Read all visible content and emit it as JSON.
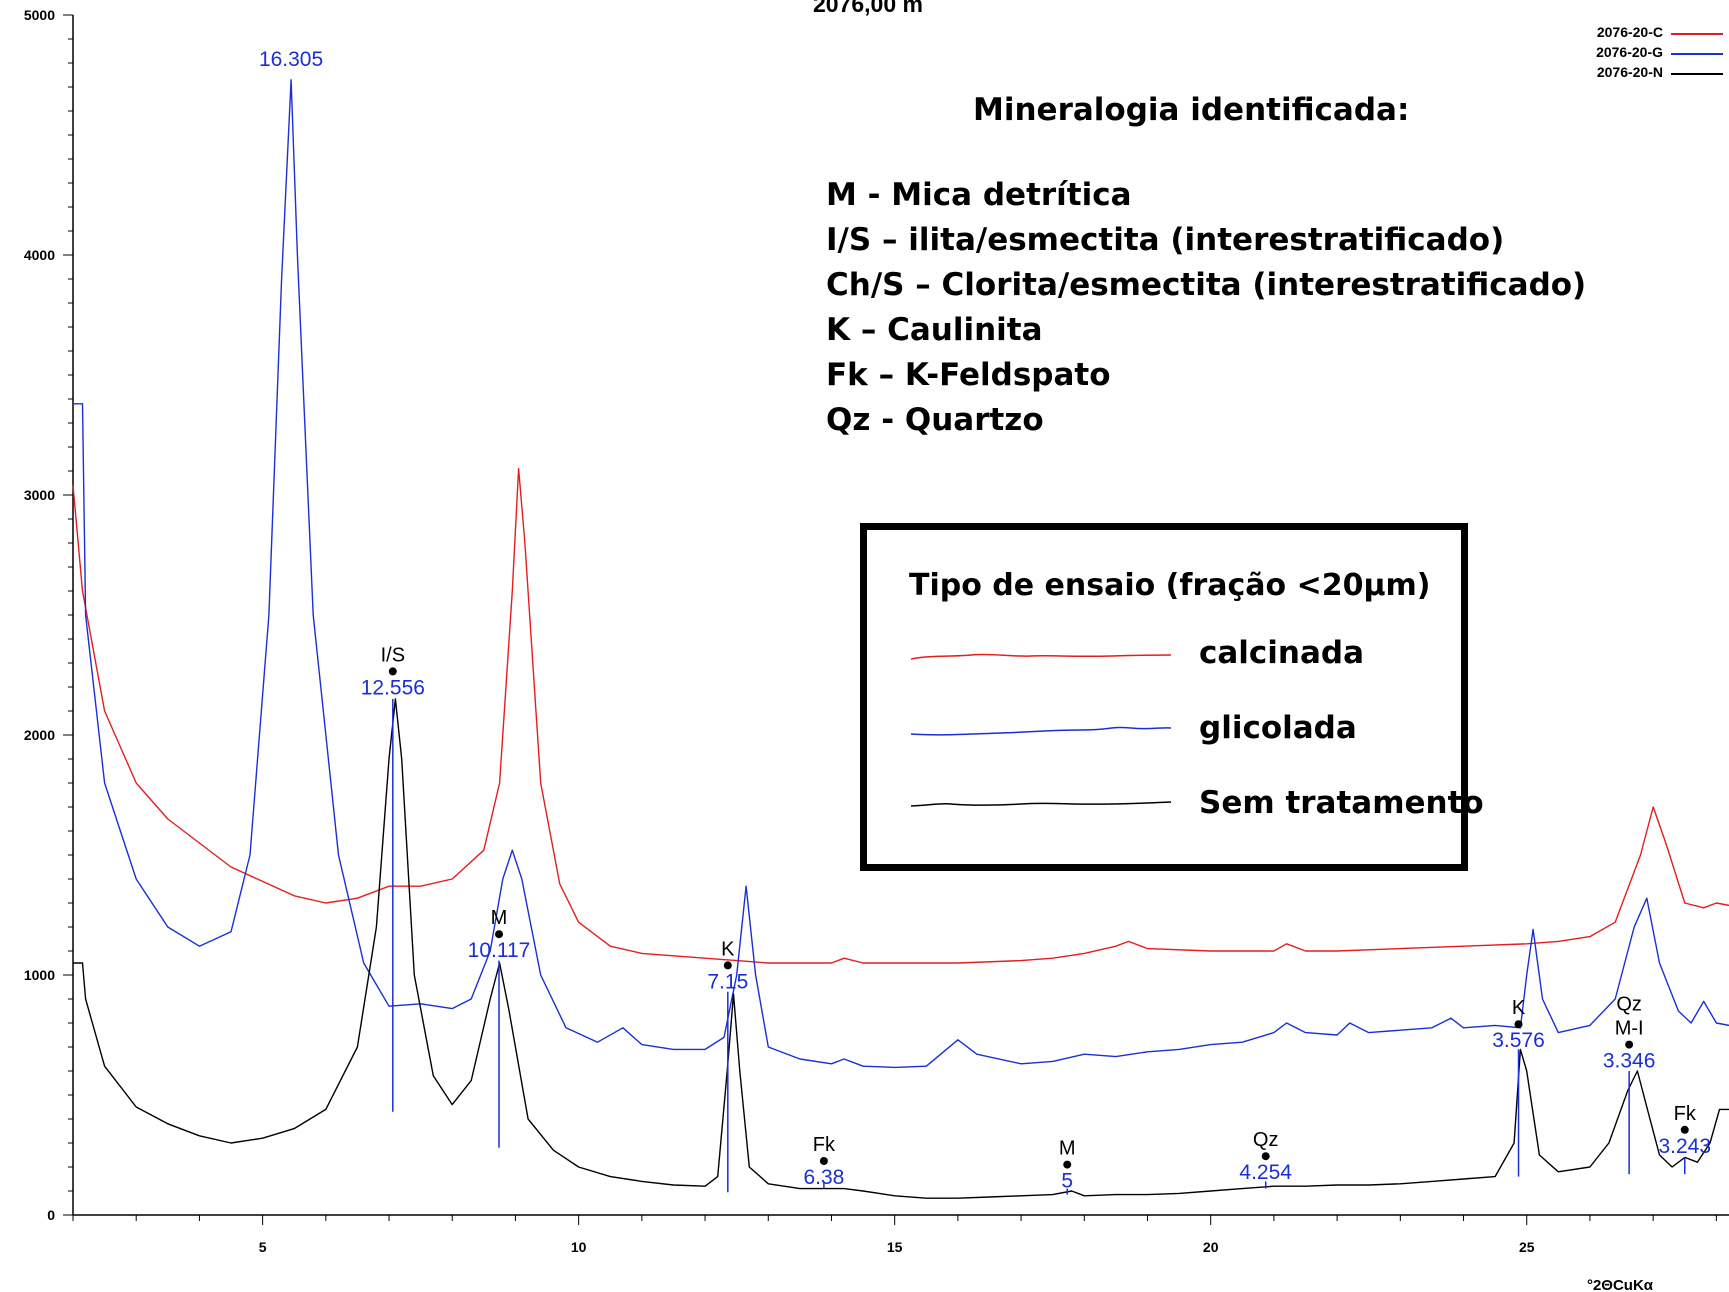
{
  "chart_data": {
    "type": "line",
    "title": "2076,00 m",
    "xlabel": "°2ΘCuKα",
    "ylabel": "",
    "xlim": [
      2,
      28.2
    ],
    "ylim": [
      0,
      5000
    ],
    "x_ticks": [
      5,
      10,
      15,
      20,
      25
    ],
    "y_ticks": [
      0,
      1000,
      2000,
      3000,
      4000,
      5000
    ],
    "series": [
      {
        "name": "2076-20-C",
        "color": "#e41e1e",
        "points": [
          [
            2,
            3040
          ],
          [
            2.15,
            2600
          ],
          [
            2.5,
            2100
          ],
          [
            3,
            1800
          ],
          [
            3.5,
            1650
          ],
          [
            4,
            1550
          ],
          [
            4.5,
            1450
          ],
          [
            5,
            1390
          ],
          [
            5.5,
            1330
          ],
          [
            6,
            1300
          ],
          [
            6.5,
            1320
          ],
          [
            7,
            1370
          ],
          [
            7.5,
            1370
          ],
          [
            8,
            1400
          ],
          [
            8.5,
            1520
          ],
          [
            8.75,
            1800
          ],
          [
            8.95,
            2600
          ],
          [
            9.05,
            3110
          ],
          [
            9.15,
            2800
          ],
          [
            9.4,
            1800
          ],
          [
            9.7,
            1380
          ],
          [
            10,
            1220
          ],
          [
            10.5,
            1120
          ],
          [
            11,
            1090
          ],
          [
            11.5,
            1080
          ],
          [
            12,
            1070
          ],
          [
            12.5,
            1060
          ],
          [
            13,
            1050
          ],
          [
            13.5,
            1050
          ],
          [
            14,
            1050
          ],
          [
            14.2,
            1070
          ],
          [
            14.5,
            1050
          ],
          [
            15,
            1050
          ],
          [
            16,
            1050
          ],
          [
            17,
            1060
          ],
          [
            17.5,
            1070
          ],
          [
            18,
            1090
          ],
          [
            18.5,
            1120
          ],
          [
            18.7,
            1140
          ],
          [
            19,
            1110
          ],
          [
            20,
            1100
          ],
          [
            21,
            1100
          ],
          [
            21.2,
            1130
          ],
          [
            21.5,
            1100
          ],
          [
            22,
            1100
          ],
          [
            23,
            1110
          ],
          [
            24,
            1120
          ],
          [
            25,
            1130
          ],
          [
            25.5,
            1140
          ],
          [
            26,
            1160
          ],
          [
            26.4,
            1220
          ],
          [
            26.8,
            1500
          ],
          [
            27,
            1700
          ],
          [
            27.2,
            1550
          ],
          [
            27.5,
            1300
          ],
          [
            27.8,
            1280
          ],
          [
            28,
            1300
          ],
          [
            28.2,
            1290
          ]
        ]
      },
      {
        "name": "2076-20-G",
        "color": "#1a2fd4",
        "points": [
          [
            2,
            3380
          ],
          [
            2.15,
            3380
          ],
          [
            2.2,
            2500
          ],
          [
            2.5,
            1800
          ],
          [
            3,
            1400
          ],
          [
            3.5,
            1200
          ],
          [
            4,
            1120
          ],
          [
            4.5,
            1180
          ],
          [
            4.8,
            1500
          ],
          [
            5.1,
            2500
          ],
          [
            5.3,
            3900
          ],
          [
            5.45,
            4730
          ],
          [
            5.55,
            4000
          ],
          [
            5.8,
            2500
          ],
          [
            6.2,
            1500
          ],
          [
            6.6,
            1050
          ],
          [
            7,
            870
          ],
          [
            7.5,
            880
          ],
          [
            8,
            860
          ],
          [
            8.3,
            900
          ],
          [
            8.6,
            1100
          ],
          [
            8.8,
            1400
          ],
          [
            8.95,
            1520
          ],
          [
            9.1,
            1400
          ],
          [
            9.4,
            1000
          ],
          [
            9.8,
            780
          ],
          [
            10.3,
            720
          ],
          [
            10.7,
            780
          ],
          [
            11,
            710
          ],
          [
            11.5,
            690
          ],
          [
            12,
            690
          ],
          [
            12.3,
            740
          ],
          [
            12.5,
            1000
          ],
          [
            12.65,
            1370
          ],
          [
            12.8,
            1000
          ],
          [
            13,
            700
          ],
          [
            13.5,
            650
          ],
          [
            14,
            630
          ],
          [
            14.2,
            650
          ],
          [
            14.5,
            620
          ],
          [
            15,
            615
          ],
          [
            15.5,
            620
          ],
          [
            16,
            730
          ],
          [
            16.3,
            670
          ],
          [
            17,
            630
          ],
          [
            17.5,
            640
          ],
          [
            18,
            670
          ],
          [
            18.5,
            660
          ],
          [
            19,
            680
          ],
          [
            19.5,
            690
          ],
          [
            20,
            710
          ],
          [
            20.5,
            720
          ],
          [
            21,
            760
          ],
          [
            21.2,
            800
          ],
          [
            21.5,
            760
          ],
          [
            22,
            750
          ],
          [
            22.2,
            800
          ],
          [
            22.5,
            760
          ],
          [
            23,
            770
          ],
          [
            23.5,
            780
          ],
          [
            23.8,
            820
          ],
          [
            24,
            780
          ],
          [
            24.5,
            790
          ],
          [
            24.9,
            780
          ],
          [
            25,
            1000
          ],
          [
            25.1,
            1190
          ],
          [
            25.25,
            900
          ],
          [
            25.5,
            760
          ],
          [
            26,
            790
          ],
          [
            26.4,
            900
          ],
          [
            26.7,
            1200
          ],
          [
            26.9,
            1320
          ],
          [
            27.1,
            1050
          ],
          [
            27.4,
            850
          ],
          [
            27.6,
            800
          ],
          [
            27.8,
            890
          ],
          [
            28,
            800
          ],
          [
            28.2,
            790
          ]
        ]
      },
      {
        "name": "2076-20-N",
        "color": "#000000",
        "points": [
          [
            2,
            1050
          ],
          [
            2.15,
            1050
          ],
          [
            2.2,
            900
          ],
          [
            2.5,
            620
          ],
          [
            3,
            450
          ],
          [
            3.5,
            380
          ],
          [
            4,
            330
          ],
          [
            4.5,
            300
          ],
          [
            5,
            320
          ],
          [
            5.5,
            360
          ],
          [
            6,
            440
          ],
          [
            6.5,
            700
          ],
          [
            6.8,
            1200
          ],
          [
            7,
            1900
          ],
          [
            7.1,
            2150
          ],
          [
            7.2,
            1900
          ],
          [
            7.4,
            1000
          ],
          [
            7.7,
            580
          ],
          [
            8,
            460
          ],
          [
            8.3,
            560
          ],
          [
            8.6,
            900
          ],
          [
            8.75,
            1050
          ],
          [
            8.9,
            850
          ],
          [
            9.2,
            400
          ],
          [
            9.6,
            270
          ],
          [
            10,
            200
          ],
          [
            10.5,
            160
          ],
          [
            11,
            140
          ],
          [
            11.5,
            125
          ],
          [
            12,
            120
          ],
          [
            12.2,
            160
          ],
          [
            12.35,
            600
          ],
          [
            12.45,
            920
          ],
          [
            12.55,
            600
          ],
          [
            12.7,
            200
          ],
          [
            13,
            130
          ],
          [
            13.5,
            110
          ],
          [
            14,
            110
          ],
          [
            14.2,
            110
          ],
          [
            14.5,
            100
          ],
          [
            15,
            80
          ],
          [
            15.5,
            70
          ],
          [
            16,
            70
          ],
          [
            16.5,
            75
          ],
          [
            17,
            80
          ],
          [
            17.5,
            85
          ],
          [
            17.8,
            100
          ],
          [
            18,
            80
          ],
          [
            18.5,
            85
          ],
          [
            19,
            85
          ],
          [
            19.5,
            90
          ],
          [
            20,
            100
          ],
          [
            20.5,
            110
          ],
          [
            21,
            120
          ],
          [
            21.5,
            120
          ],
          [
            22,
            125
          ],
          [
            22.5,
            125
          ],
          [
            23,
            130
          ],
          [
            23.5,
            140
          ],
          [
            24,
            150
          ],
          [
            24.5,
            160
          ],
          [
            24.8,
            300
          ],
          [
            24.9,
            690
          ],
          [
            25,
            600
          ],
          [
            25.2,
            250
          ],
          [
            25.5,
            180
          ],
          [
            26,
            200
          ],
          [
            26.3,
            300
          ],
          [
            26.6,
            520
          ],
          [
            26.75,
            600
          ],
          [
            26.9,
            450
          ],
          [
            27.1,
            250
          ],
          [
            27.3,
            200
          ],
          [
            27.5,
            240
          ],
          [
            27.7,
            220
          ],
          [
            27.9,
            300
          ],
          [
            28.05,
            440
          ],
          [
            28.2,
            440
          ]
        ]
      }
    ],
    "peak_markers": [
      {
        "x": 7.06,
        "y_bottom": 430,
        "y_top": 2150,
        "color": "#1a2fd4"
      },
      {
        "x": 8.74,
        "y_bottom": 280,
        "y_top": 1060,
        "color": "#1a2fd4"
      },
      {
        "x": 12.36,
        "y_bottom": 95,
        "y_top": 930,
        "color": "#1a2fd4"
      },
      {
        "x": 13.88,
        "y_bottom": 110,
        "y_top": 140,
        "color": "#1a2fd4"
      },
      {
        "x": 17.73,
        "y_bottom": 85,
        "y_top": 110,
        "color": "#1a2fd4"
      },
      {
        "x": 20.87,
        "y_bottom": 110,
        "y_top": 140,
        "color": "#1a2fd4"
      },
      {
        "x": 24.87,
        "y_bottom": 160,
        "y_top": 690,
        "color": "#1a2fd4"
      },
      {
        "x": 26.62,
        "y_bottom": 170,
        "y_top": 600,
        "color": "#1a2fd4"
      },
      {
        "x": 27.5,
        "y_bottom": 170,
        "y_top": 240,
        "color": "#1a2fd4"
      }
    ],
    "annotations": [
      {
        "mineral": "I/S",
        "value": "12.556",
        "x": 7.06,
        "y": 2265
      },
      {
        "mineral": "M",
        "value": "10.117",
        "x": 8.74,
        "y": 1170
      },
      {
        "mineral": "K",
        "value": "7.15",
        "x": 12.36,
        "y": 1040
      },
      {
        "mineral": "Fk",
        "value": "6.38",
        "x": 13.88,
        "y": 225
      },
      {
        "mineral": "M",
        "value": "5",
        "x": 17.73,
        "y": 210
      },
      {
        "mineral": "Qz",
        "value": "4.254",
        "x": 20.87,
        "y": 245
      },
      {
        "mineral": "K",
        "value": "3.576",
        "x": 24.87,
        "y": 795
      },
      {
        "mineral": "Qz M-I",
        "value": "3.346",
        "x": 26.62,
        "y": 710
      },
      {
        "mineral": "Fk",
        "value": "3.243",
        "x": 27.5,
        "y": 355
      }
    ],
    "top_peak_label": {
      "value": "16.305",
      "x": 5.45
    },
    "legend": [
      "2076-20-C",
      "2076-20-G",
      "2076-20-N"
    ],
    "legend_position": "top-right",
    "grid": false
  },
  "mineralogy": {
    "title": "Mineralogia identificada:",
    "items": [
      "M - Mica detrítica",
      "I/S – ilita/esmectita (interestratificado)",
      "Ch/S – Clorita/esmectita (interestratificado)",
      "K – Caulinita",
      "Fk – K-Feldspato",
      "Qz - Quartzo"
    ]
  },
  "test_legend": {
    "title": "Tipo de ensaio (fração <20µm)",
    "entries": [
      {
        "label": "calcinada",
        "color": "#e41e1e"
      },
      {
        "label": "glicolada",
        "color": "#1a2fd4"
      },
      {
        "label": "Sem tratamento",
        "color": "#000000"
      }
    ]
  }
}
